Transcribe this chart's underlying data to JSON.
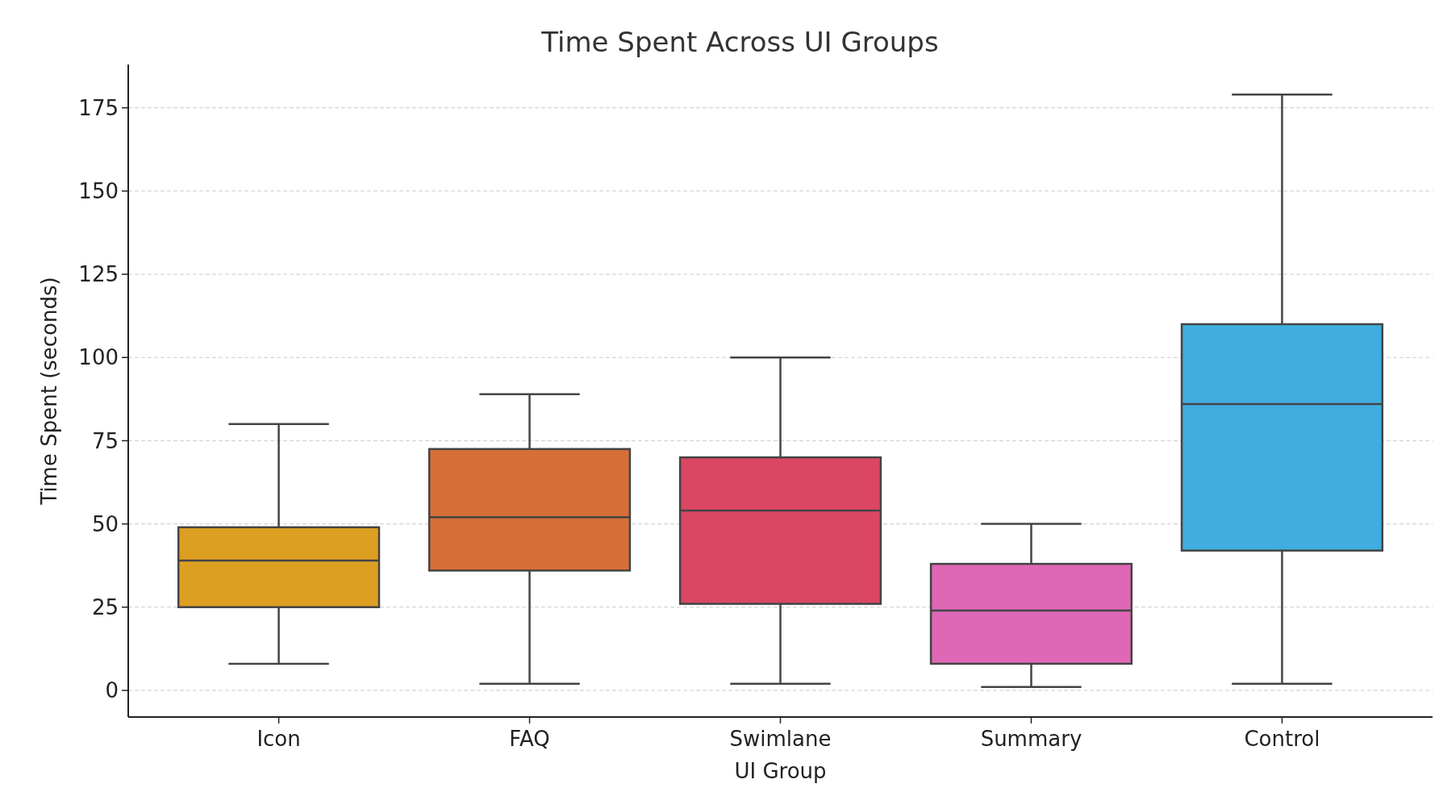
{
  "chart_data": {
    "type": "box",
    "title": "Time Spent Across UI Groups",
    "xlabel": "UI Group",
    "ylabel": "Time Spent (seconds)",
    "categories": [
      "Icon",
      "FAQ",
      "Swimlane",
      "Summary",
      "Control"
    ],
    "colors": [
      "#dc9f22",
      "#d66e38",
      "#db4763",
      "#de67b6",
      "#40ade0"
    ],
    "boxes": [
      {
        "low": 8,
        "q1": 25,
        "median": 39,
        "q3": 49,
        "high": 80
      },
      {
        "low": 2,
        "q1": 36,
        "median": 52,
        "q3": 72.5,
        "high": 89
      },
      {
        "low": 2,
        "q1": 26,
        "median": 54,
        "q3": 70,
        "high": 100
      },
      {
        "low": 1,
        "q1": 8,
        "median": 24,
        "q3": 38,
        "high": 50
      },
      {
        "low": 2,
        "q1": 42,
        "median": 86,
        "q3": 110,
        "high": 179
      }
    ],
    "ylim": [
      -8,
      188
    ],
    "yticks": [
      0,
      25,
      50,
      75,
      100,
      125,
      150,
      175
    ],
    "grid": "y"
  }
}
